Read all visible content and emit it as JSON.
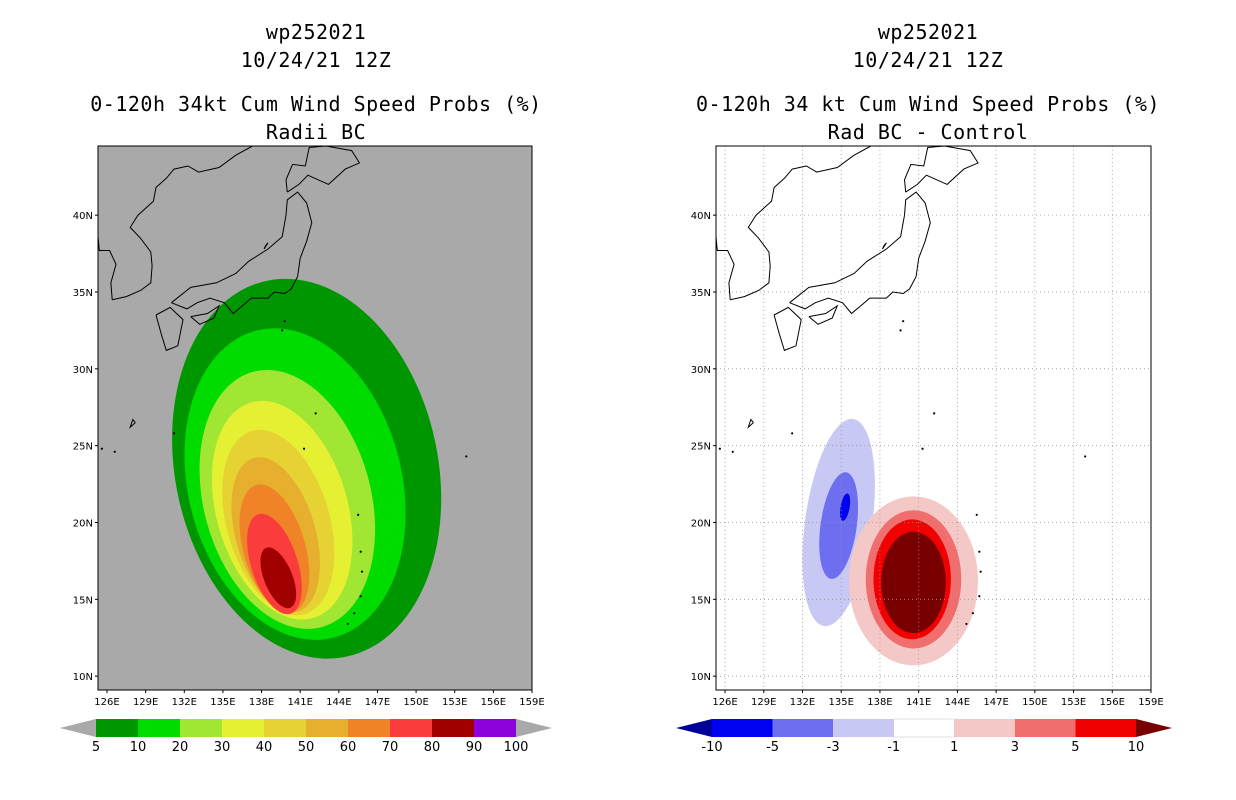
{
  "panels": [
    {
      "storm_id": "wp252021",
      "date": "10/24/21 12Z",
      "title_line1": "0-120h 34kt Cum Wind Speed Probs (%)",
      "title_line2": "Radii BC",
      "background": "#a9a9a9",
      "gridlines": false
    },
    {
      "storm_id": "wp252021",
      "date": "10/24/21 12Z",
      "title_line1": "0-120h 34 kt Cum Wind Speed Probs (%)",
      "title_line2": "Rad BC - Control",
      "background": "#ffffff",
      "gridlines": true
    }
  ],
  "chart_data": [
    {
      "type": "heatmap",
      "title": "0-120h 34kt Cum Wind Speed Probs (%) Radii BC",
      "x_ticks": [
        "126E",
        "129E",
        "132E",
        "135E",
        "138E",
        "141E",
        "144E",
        "147E",
        "150E",
        "153E",
        "156E",
        "159E"
      ],
      "y_ticks": [
        "10N",
        "15N",
        "20N",
        "25N",
        "30N",
        "35N",
        "40N"
      ],
      "xlim": [
        125.3,
        159
      ],
      "ylim": [
        9.1,
        44.5
      ],
      "legend": {
        "labels": [
          "5",
          "10",
          "20",
          "30",
          "40",
          "50",
          "60",
          "70",
          "80",
          "90",
          "100"
        ],
        "colors": [
          "#009600",
          "#00dc00",
          "#a0e632",
          "#e6f032",
          "#e6d232",
          "#e6af2d",
          "#f08228",
          "#fa3c3c",
          "#a00000",
          "#8c00dc"
        ],
        "under_color": "#a9a9a9",
        "over_color": "#a9a9a9"
      },
      "contours": [
        {
          "level": 5,
          "color": "#009600",
          "center": [
            141.5,
            23.5
          ],
          "rx": 10.2,
          "ry": 12.5,
          "rot": -12
        },
        {
          "level": 10,
          "color": "#00dc00",
          "center": [
            140.6,
            22.5
          ],
          "rx": 8.3,
          "ry": 10.3,
          "rot": -14
        },
        {
          "level": 20,
          "color": "#a0e632",
          "center": [
            140.0,
            21.5
          ],
          "rx": 6.5,
          "ry": 8.6,
          "rot": -15
        },
        {
          "level": 30,
          "color": "#e6f032",
          "center": [
            139.6,
            20.8
          ],
          "rx": 5.1,
          "ry": 7.3,
          "rot": -16
        },
        {
          "level": 40,
          "color": "#e6d232",
          "center": [
            139.3,
            20.0
          ],
          "rx": 4.0,
          "ry": 6.2,
          "rot": -16
        },
        {
          "level": 50,
          "color": "#e6af2d",
          "center": [
            139.1,
            19.2
          ],
          "rx": 3.1,
          "ry": 5.2,
          "rot": -16
        },
        {
          "level": 60,
          "color": "#f08228",
          "center": [
            139.0,
            18.3
          ],
          "rx": 2.4,
          "ry": 4.3,
          "rot": -16
        },
        {
          "level": 70,
          "color": "#fa3c3c",
          "center": [
            139.0,
            17.3
          ],
          "rx": 1.8,
          "ry": 3.4,
          "rot": -18
        },
        {
          "level": 80,
          "color": "#a00000",
          "center": [
            139.3,
            16.4
          ],
          "rx": 1.1,
          "ry": 2.1,
          "rot": -22
        }
      ]
    },
    {
      "type": "heatmap",
      "title": "0-120h 34 kt Cum Wind Speed Probs (%) Rad BC - Control",
      "x_ticks": [
        "126E",
        "129E",
        "132E",
        "135E",
        "138E",
        "141E",
        "144E",
        "147E",
        "150E",
        "153E",
        "156E",
        "159E"
      ],
      "y_ticks": [
        "10N",
        "15N",
        "20N",
        "25N",
        "30N",
        "35N",
        "40N"
      ],
      "xlim": [
        125.3,
        159
      ],
      "ylim": [
        9.1,
        44.5
      ],
      "legend": {
        "labels": [
          "-10",
          "-5",
          "-3",
          "-1",
          "1",
          "3",
          "5",
          "10"
        ],
        "colors": [
          "#0000f0",
          "#6e6ef0",
          "#c8c8f5",
          "#ffffff",
          "#f5c8c8",
          "#f06e6e",
          "#f00000"
        ],
        "under_color": "#00009b",
        "over_color": "#780000"
      },
      "contours": [
        {
          "level": -1,
          "color": "#c8c8f5",
          "center": [
            134.8,
            20.0
          ],
          "rx": 2.6,
          "ry": 6.8,
          "rot": 8
        },
        {
          "level": -3,
          "color": "#6e6ef0",
          "center": [
            134.8,
            19.8
          ],
          "rx": 1.4,
          "ry": 3.5,
          "rot": 8
        },
        {
          "level": -5,
          "color": "#0000f0",
          "center": [
            135.3,
            21.0
          ],
          "rx": 0.35,
          "ry": 0.9,
          "rot": 10
        },
        {
          "level": 1,
          "color": "#f5c8c8",
          "center": [
            140.6,
            16.2
          ],
          "rx": 5.0,
          "ry": 5.5,
          "rot": 0
        },
        {
          "level": 3,
          "color": "#f06e6e",
          "center": [
            140.6,
            16.3
          ],
          "rx": 3.7,
          "ry": 4.5,
          "rot": 0
        },
        {
          "level": 5,
          "color": "#f00000",
          "center": [
            140.5,
            16.3
          ],
          "rx": 3.0,
          "ry": 3.9,
          "rot": 0
        },
        {
          "level": 10,
          "color": "#780000",
          "center": [
            140.6,
            16.1
          ],
          "rx": 2.5,
          "ry": 3.3,
          "rot": 0
        }
      ]
    }
  ]
}
